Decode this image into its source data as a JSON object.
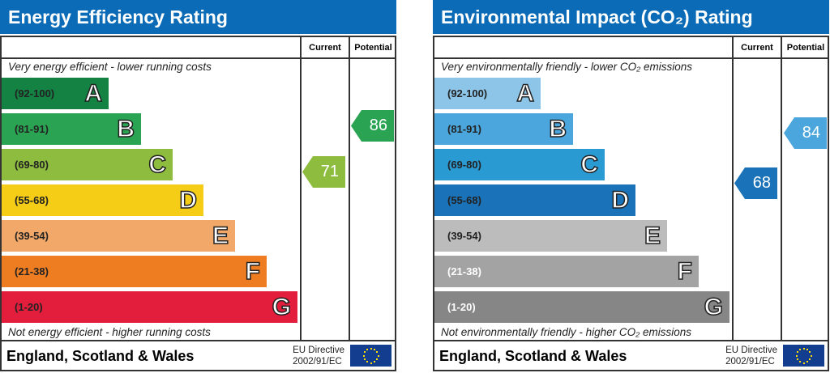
{
  "chart_data": [
    {
      "type": "bar",
      "title": "Energy Efficiency Rating",
      "top_note": "Very energy efficient - lower running costs",
      "bottom_note": "Not energy efficient - higher running costs",
      "columns": [
        "Current",
        "Potential"
      ],
      "bands": [
        {
          "range": "(92-100)",
          "letter": "A",
          "color": "#138243"
        },
        {
          "range": "(81-91)",
          "letter": "B",
          "color": "#2aa452"
        },
        {
          "range": "(69-80)",
          "letter": "C",
          "color": "#8dbc3f"
        },
        {
          "range": "(55-68)",
          "letter": "D",
          "color": "#f5cc16"
        },
        {
          "range": "(39-54)",
          "letter": "E",
          "color": "#f1a868"
        },
        {
          "range": "(21-38)",
          "letter": "F",
          "color": "#ee7d22"
        },
        {
          "range": "(1-20)",
          "letter": "G",
          "color": "#e31d3c"
        }
      ],
      "current": {
        "value": "71",
        "color": "#8dbc3f"
      },
      "potential": {
        "value": "86",
        "color": "#2aa452"
      },
      "footer": "England, Scotland & Wales",
      "directive": [
        "EU Directive",
        "2002/91/EC"
      ]
    },
    {
      "type": "bar",
      "title": "Environmental Impact (CO₂) Rating",
      "top_note": "Very environmentally friendly - lower CO₂ emissions",
      "bottom_note": "Not environmentally friendly - higher CO₂ emissions",
      "columns": [
        "Current",
        "Potential"
      ],
      "bands": [
        {
          "range": "(92-100)",
          "letter": "A",
          "color": "#8cc5e8"
        },
        {
          "range": "(81-91)",
          "letter": "B",
          "color": "#4aa6dc"
        },
        {
          "range": "(69-80)",
          "letter": "C",
          "color": "#2a9ad3"
        },
        {
          "range": "(55-68)",
          "letter": "D",
          "color": "#1a72b8"
        },
        {
          "range": "(39-54)",
          "letter": "E",
          "color": "#bcbcbc"
        },
        {
          "range": "(21-38)",
          "letter": "F",
          "color": "#a3a3a3"
        },
        {
          "range": "(1-20)",
          "letter": "G",
          "color": "#868686"
        }
      ],
      "current": {
        "value": "68",
        "color": "#1a72b8"
      },
      "potential": {
        "value": "84",
        "color": "#4aa6dc"
      },
      "footer": "England, Scotland & Wales",
      "directive": [
        "EU Directive",
        "2002/91/EC"
      ]
    }
  ]
}
